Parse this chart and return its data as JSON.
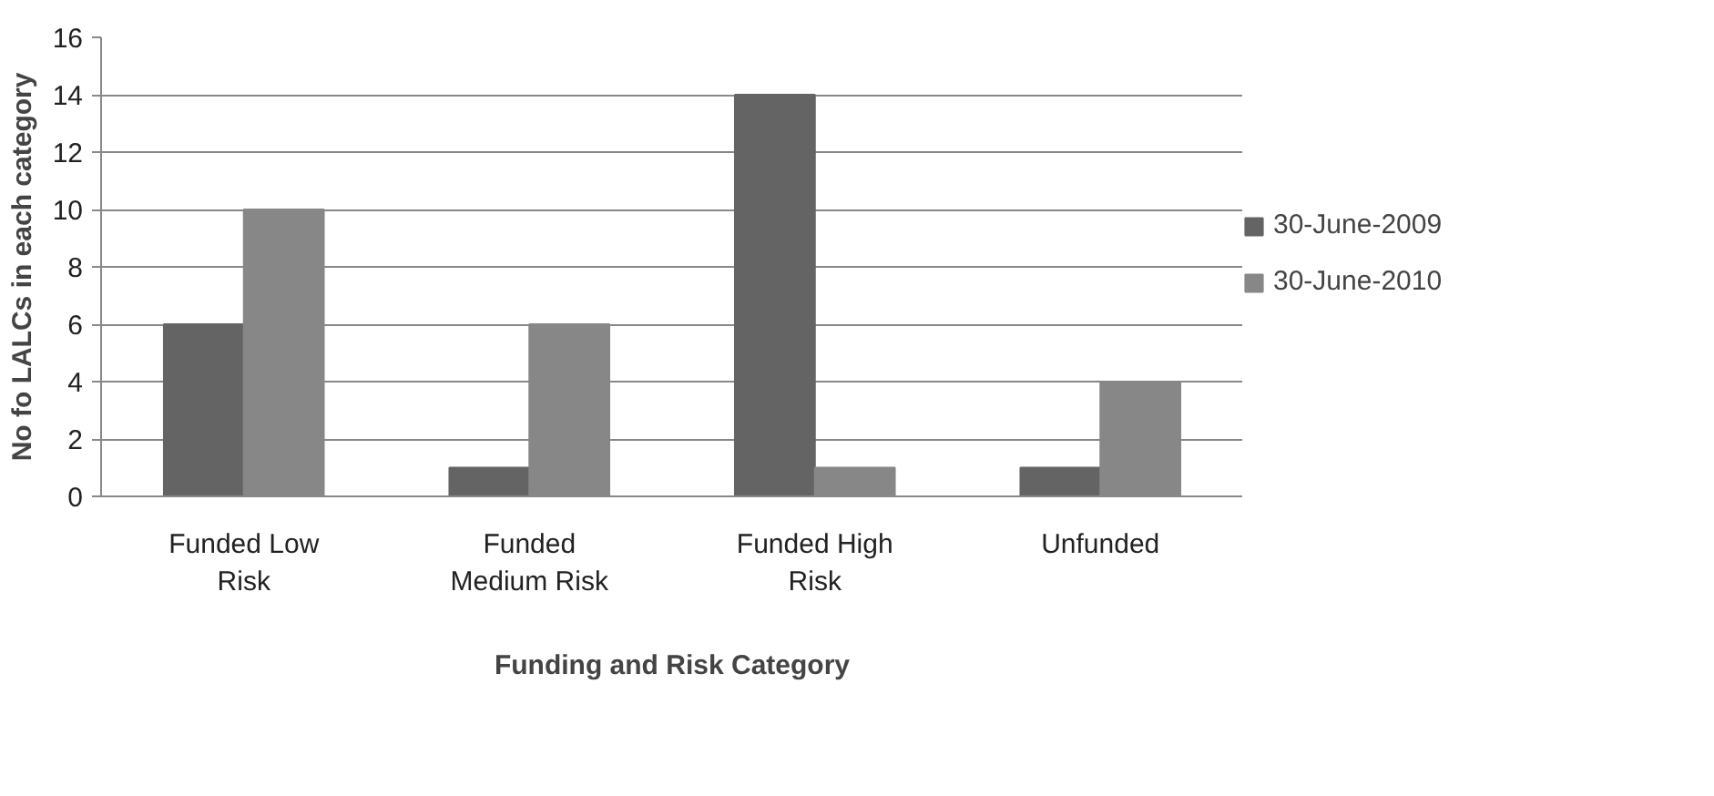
{
  "chart_data": {
    "type": "bar",
    "xlabel": "Funding and Risk Category",
    "ylabel": "No fo LALCs in each category",
    "categories": [
      "Funded Low\nRisk",
      "Funded\nMedium Risk",
      "Funded High\nRisk",
      "Unfunded"
    ],
    "series": [
      {
        "name": "30-June-2009",
        "color": "#646464",
        "values": [
          6,
          1,
          14,
          1
        ]
      },
      {
        "name": "30-June-2010",
        "color": "#878787",
        "values": [
          10,
          6,
          1,
          4
        ]
      }
    ],
    "ylim": [
      0,
      16
    ],
    "yticks": [
      0,
      2,
      4,
      6,
      8,
      10,
      12,
      14,
      16
    ],
    "grid": "y",
    "legend": "right"
  }
}
